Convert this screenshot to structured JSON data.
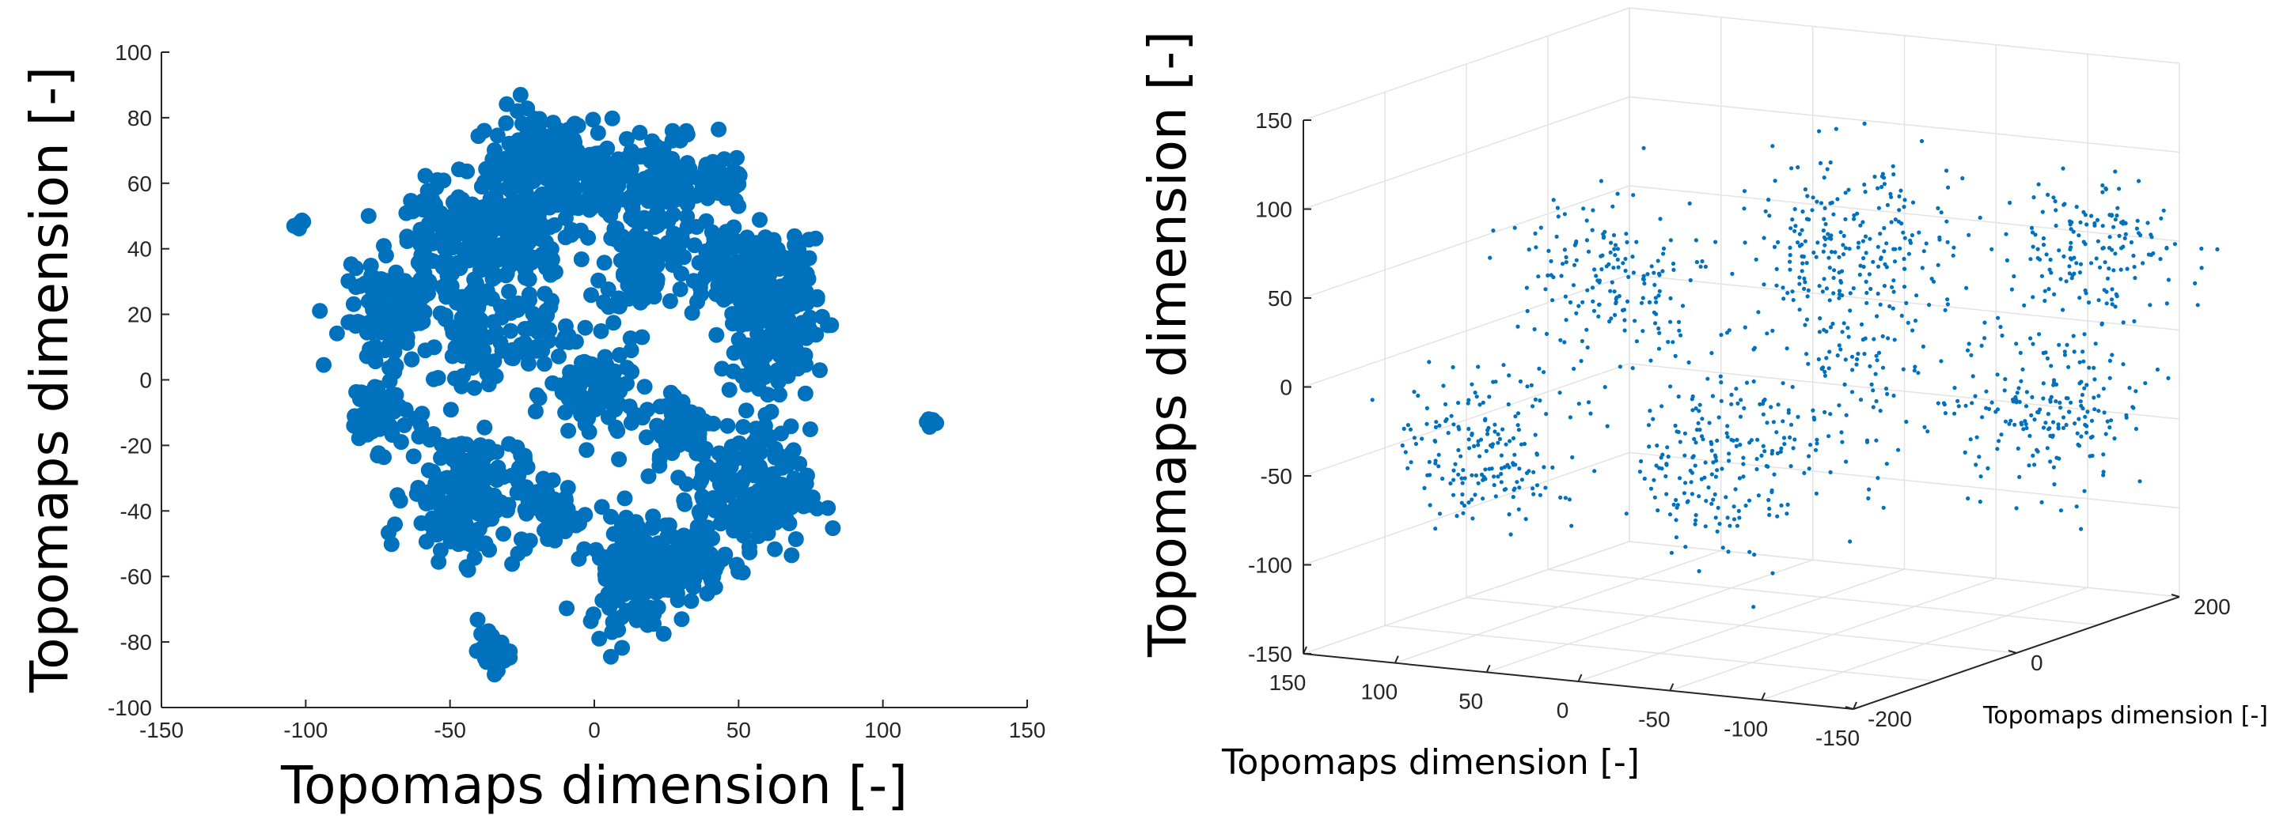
{
  "chart_data": [
    {
      "type": "scatter",
      "title": "",
      "xlabel": "Topomaps dimension [-]",
      "ylabel": "Topomaps dimension [-]",
      "xlim": [
        -150,
        150
      ],
      "ylim": [
        -100,
        100
      ],
      "xticks": [
        -150,
        -100,
        -50,
        0,
        50,
        100,
        150
      ],
      "yticks": [
        -100,
        -80,
        -60,
        -40,
        -20,
        0,
        20,
        40,
        60,
        80,
        100
      ],
      "color": "#0072BD",
      "clusters": [
        {
          "cx": -20,
          "cy": 65,
          "r": 16,
          "n": 140
        },
        {
          "cx": 0,
          "cy": 62,
          "r": 14,
          "n": 110
        },
        {
          "cx": 25,
          "cy": 58,
          "r": 14,
          "n": 90
        },
        {
          "cx": 45,
          "cy": 62,
          "r": 8,
          "n": 40
        },
        {
          "cx": -50,
          "cy": 40,
          "r": 18,
          "n": 160
        },
        {
          "cx": -28,
          "cy": 40,
          "r": 14,
          "n": 90
        },
        {
          "cx": 18,
          "cy": 35,
          "r": 14,
          "n": 90
        },
        {
          "cx": 45,
          "cy": 35,
          "r": 14,
          "n": 80
        },
        {
          "cx": 62,
          "cy": 25,
          "r": 16,
          "n": 160
        },
        {
          "cx": -72,
          "cy": 18,
          "r": 14,
          "n": 110
        },
        {
          "cx": -40,
          "cy": 12,
          "r": 12,
          "n": 60
        },
        {
          "cx": 60,
          "cy": 5,
          "r": 12,
          "n": 70
        },
        {
          "cx": -75,
          "cy": -10,
          "r": 10,
          "n": 50
        },
        {
          "cx": 0,
          "cy": -5,
          "r": 14,
          "n": 90
        },
        {
          "cx": -45,
          "cy": -35,
          "r": 18,
          "n": 180
        },
        {
          "cx": 55,
          "cy": -35,
          "r": 18,
          "n": 180
        },
        {
          "cx": 30,
          "cy": -15,
          "r": 12,
          "n": 70
        },
        {
          "cx": -15,
          "cy": -40,
          "r": 10,
          "n": 50
        },
        {
          "cx": 15,
          "cy": -58,
          "r": 16,
          "n": 170
        },
        {
          "cx": 35,
          "cy": -55,
          "r": 10,
          "n": 60
        },
        {
          "cx": -20,
          "cy": 15,
          "r": 10,
          "n": 40
        },
        {
          "cx": -35,
          "cy": -83,
          "r": 5,
          "n": 40
        },
        {
          "cx": -102,
          "cy": 48,
          "r": 2,
          "n": 6
        },
        {
          "cx": 117,
          "cy": -14,
          "r": 2,
          "n": 6
        }
      ]
    },
    {
      "type": "scatter3d",
      "title": "",
      "xlabel": "Topomaps dimension [-]",
      "ylabel": "Topomaps dimension [-]",
      "zlabel": "Topomaps dimension [-]",
      "xticks": [
        150,
        100,
        50,
        0,
        -50,
        -100,
        -150
      ],
      "yticks": [
        200,
        0,
        -200
      ],
      "zticks": [
        150,
        100,
        50,
        0,
        -50,
        -100,
        -150
      ],
      "xlim": [
        -150,
        150
      ],
      "ylim": [
        -200,
        200
      ],
      "zlim": [
        -150,
        150
      ],
      "color": "#0072BD",
      "clusters": [
        {
          "cx": -150,
          "cy": 90,
          "cz": 60,
          "r": 35,
          "n": 160
        },
        {
          "cx": -60,
          "cy": 0,
          "cz": 75,
          "r": 40,
          "n": 200
        },
        {
          "cx": 20,
          "cy": -120,
          "cz": 60,
          "r": 40,
          "n": 170
        },
        {
          "cx": -140,
          "cy": 60,
          "cz": -25,
          "r": 40,
          "n": 200
        },
        {
          "cx": -20,
          "cy": -60,
          "cz": -45,
          "r": 45,
          "n": 220
        },
        {
          "cx": 60,
          "cy": -180,
          "cz": -30,
          "r": 35,
          "n": 180
        },
        {
          "cx": -80,
          "cy": -40,
          "cz": 20,
          "r": 45,
          "n": 120
        }
      ]
    }
  ]
}
